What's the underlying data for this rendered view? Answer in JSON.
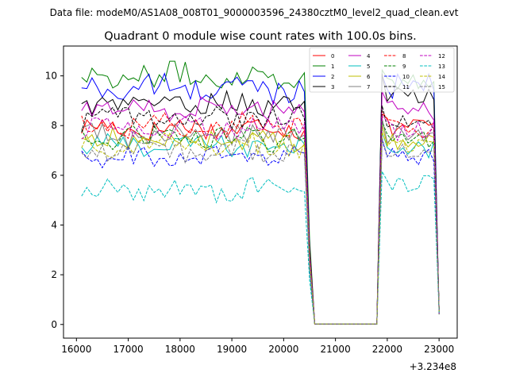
{
  "chart_data": {
    "type": "line",
    "suptitle": "Data file: modeM0/AS1A08_008T01_9000003596_24380cztM0_level2_quad_clean.evt",
    "title": "Quadrant 0 module wise count rates with 100.0s bins.",
    "xlabel": "",
    "ylabel": "",
    "x_offset_label": "+3.234e8",
    "xlim": [
      15750,
      23350
    ],
    "ylim": [
      -0.55,
      11.2
    ],
    "x_ticks": [
      16000,
      17000,
      18000,
      19000,
      20000,
      21000,
      22000,
      23000
    ],
    "x_tick_labels": [
      "16000",
      "17000",
      "18000",
      "19000",
      "20000",
      "21000",
      "22000",
      "23000"
    ],
    "y_ticks": [
      0,
      2,
      4,
      6,
      8,
      10
    ],
    "y_tick_labels": [
      "0",
      "2",
      "4",
      "6",
      "8",
      "10"
    ],
    "legend_position": "top-right",
    "legend_columns": 4,
    "x_start": 16100,
    "x_step": 100,
    "gap_start_index": 45,
    "gap_end_index": 57,
    "series": [
      {
        "name": "0",
        "color": "#ff0000",
        "dash": "solid",
        "base": 7.9,
        "tail": 8.0
      },
      {
        "name": "1",
        "color": "#008000",
        "dash": "solid",
        "base": 10.0,
        "tail": 9.8
      },
      {
        "name": "2",
        "color": "#0000ff",
        "dash": "solid",
        "base": 9.5,
        "tail": 9.6
      },
      {
        "name": "3",
        "color": "#000000",
        "dash": "solid",
        "base": 8.9,
        "tail": 9.3
      },
      {
        "name": "4",
        "color": "#c000c0",
        "dash": "solid",
        "base": 8.7,
        "tail": 8.6
      },
      {
        "name": "5",
        "color": "#00bfbf",
        "dash": "solid",
        "base": 7.2,
        "tail": 7.0
      },
      {
        "name": "6",
        "color": "#bfbf00",
        "dash": "solid",
        "base": 7.4,
        "tail": 7.3
      },
      {
        "name": "7",
        "color": "#808080",
        "dash": "solid",
        "base": 7.6,
        "tail": 7.6
      },
      {
        "name": "8",
        "color": "#ff0000",
        "dash": "dashed",
        "base": 8.0,
        "tail": 7.9
      },
      {
        "name": "9",
        "color": "#008000",
        "dash": "dashed",
        "base": 7.5,
        "tail": 7.5
      },
      {
        "name": "10",
        "color": "#0000ff",
        "dash": "dashed",
        "base": 6.7,
        "tail": 6.8
      },
      {
        "name": "11",
        "color": "#000000",
        "dash": "dashed",
        "base": 8.3,
        "tail": 8.2
      },
      {
        "name": "12",
        "color": "#c000c0",
        "dash": "dashed",
        "base": 7.9,
        "tail": 7.8
      },
      {
        "name": "13",
        "color": "#00bfbf",
        "dash": "dashed",
        "base": 5.4,
        "tail": 5.6
      },
      {
        "name": "14",
        "color": "#bfbf00",
        "dash": "dashed",
        "base": 7.2,
        "tail": 7.2
      },
      {
        "name": "15",
        "color": "#808080",
        "dash": "dashed",
        "base": 7.0,
        "tail": 7.0
      }
    ],
    "notes": "Each series is ~flat at its base level from x=16100 to ~20500, drops to ~0 from x~20700 to ~21800, recovers to tail level ~21900–22900, and falls to ~0.4–0.6 at x=23000."
  }
}
